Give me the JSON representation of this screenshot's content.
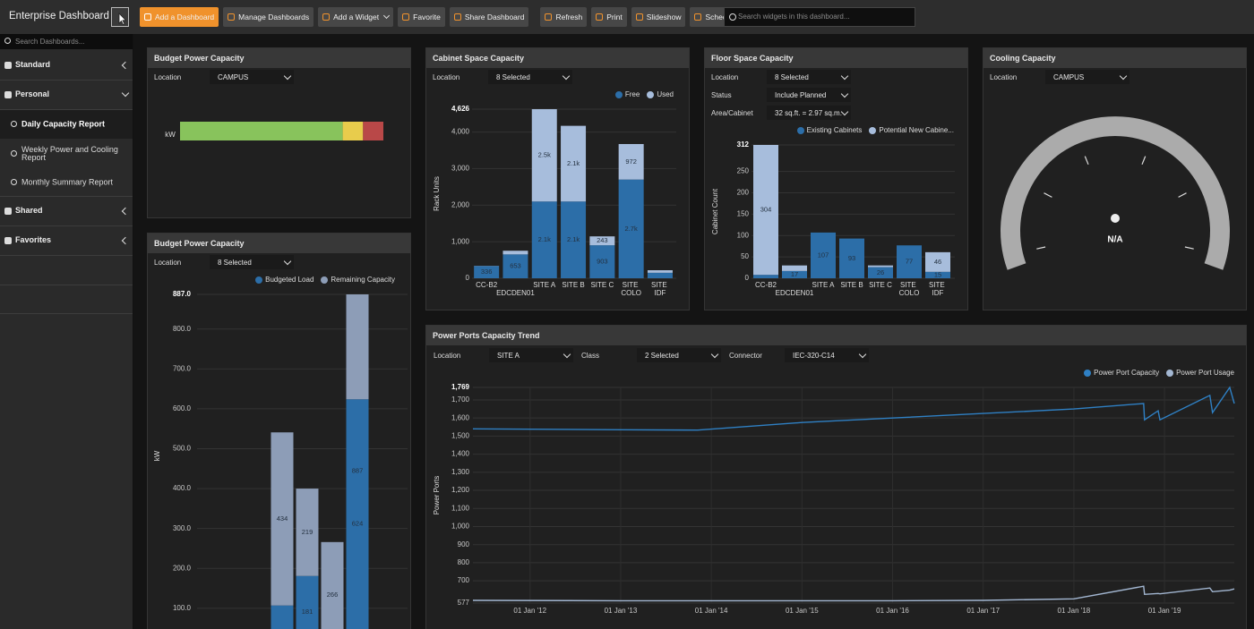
{
  "toolbar": {
    "title": "Enterprise Dashboard",
    "buttons": [
      "Add a Dashboard",
      "Manage Dashboards",
      "Add a Widget",
      "Favorite",
      "Share Dashboard",
      "Refresh",
      "Print",
      "Slideshow",
      "Schedule"
    ],
    "search_placeholder": "Search widgets in this dashboard..."
  },
  "sidebar": {
    "search_placeholder": "Search Dashboards...",
    "groups": [
      {
        "label": "Standard"
      },
      {
        "label": "Personal",
        "items": [
          "Daily Capacity Report",
          "Weekly Power and Cooling Report",
          "Monthly Summary Report"
        ]
      },
      {
        "label": "Shared"
      },
      {
        "label": "Favorites"
      }
    ]
  },
  "widgets": {
    "budget_top": {
      "title": "Budget Power Capacity",
      "filters": [
        {
          "label": "Location",
          "value": "CAMPUS"
        }
      ],
      "unit": "kW",
      "segments": [
        {
          "color": "#88c35c",
          "value": 80
        },
        {
          "color": "#e8cc4c",
          "value": 10
        },
        {
          "color": "#b94848",
          "value": 10
        }
      ]
    },
    "budget_chart": {
      "title": "Budget Power Capacity",
      "filters": [
        {
          "label": "Location",
          "value": "8 Selected"
        }
      ],
      "chart": {
        "type": "bar",
        "stacked": true,
        "grid": true,
        "y_label": "kW",
        "series": [
          {
            "name": "Budgeted Load",
            "color": "#2c6ea8",
            "values": [
              107,
              181,
              0,
              624
            ],
            "value_labels": [
              null,
              "181",
              null,
              "624"
            ]
          },
          {
            "name": "Remaining Capacity",
            "color": "#8d9db7",
            "values": [
              434,
              219,
              266,
              263
            ],
            "value_labels": [
              "434",
              "219",
              "266",
              null
            ]
          }
        ],
        "annotations": [
          {
            "text": "887",
            "value": 887
          }
        ],
        "ylim": [
          48,
          887
        ],
        "yticks": [
          {
            "value": 100,
            "label": "100.0"
          },
          {
            "value": 200,
            "label": "200.0"
          },
          {
            "value": 300,
            "label": "300.0"
          },
          {
            "value": 400,
            "label": "400.0"
          },
          {
            "value": 500,
            "label": "500.0"
          },
          {
            "value": 600,
            "label": "600.0"
          },
          {
            "value": 700,
            "label": "700.0"
          },
          {
            "value": 800,
            "label": "800.0"
          },
          {
            "value": 887,
            "label": "887.0"
          }
        ]
      }
    },
    "cabinet": {
      "title": "Cabinet Space Capacity",
      "filters": [
        {
          "label": "Location",
          "value": "8 Selected"
        }
      ],
      "chart": {
        "type": "bar",
        "stacked": true,
        "grid": true,
        "y_label": "Rack Units",
        "categories": [
          "CC-B2",
          "EDCDEN01",
          "SITE A",
          "SITE B",
          "SITE C",
          "SITE COLO",
          "SITE IDF"
        ],
        "series": [
          {
            "name": "Free",
            "color": "#2c6ea8",
            "values": [
              336,
              653,
              2100,
              2100,
              903,
              2700,
              150
            ],
            "value_labels": [
              "336",
              "653",
              "2.1k",
              "2.1k",
              "903",
              "2.7k",
              null
            ]
          },
          {
            "name": "Used",
            "color": "#a7bddc",
            "values": [
              5,
              100,
              2526,
              2070,
              243,
              972,
              70
            ],
            "value_labels": [
              null,
              null,
              "2.5k",
              "2.1k",
              "243",
              "972",
              null
            ]
          }
        ],
        "ylim": [
          0,
          4626
        ],
        "yticks": [
          0,
          {
            "value": 1000,
            "label": "1,000"
          },
          {
            "value": 2000,
            "label": "2,000"
          },
          {
            "value": 3000,
            "label": "3,000"
          },
          {
            "value": 4000,
            "label": "4,000"
          },
          {
            "value": 4626,
            "label": "4,626"
          }
        ]
      }
    },
    "floor": {
      "title": "Floor Space Capacity",
      "filters": [
        {
          "label": "Location",
          "value": "8 Selected"
        },
        {
          "label": "Status",
          "value": "Include Planned"
        },
        {
          "label": "Area/Cabinet",
          "value": "32 sq.ft. = 2.97 sq.m."
        }
      ],
      "chart": {
        "type": "bar",
        "stacked": true,
        "grid": true,
        "y_label": "Cabinet Count",
        "categories": [
          "CC-B2",
          "EDCDEN01",
          "SITE A",
          "SITE B",
          "SITE C",
          "SITE COLO",
          "SITE IDF"
        ],
        "series": [
          {
            "name": "Existing Cabinets",
            "color": "#2c6ea8",
            "values": [
              8,
              17,
              107,
              93,
              26,
              77,
              15
            ],
            "value_labels": [
              null,
              "17",
              "107",
              "93",
              "26",
              "77",
              "15"
            ]
          },
          {
            "name": "Potential New Cabine...",
            "color": "#a7bddc",
            "values": [
              304,
              13,
              0,
              0,
              4,
              0,
              46
            ],
            "value_labels": [
              "304",
              null,
              null,
              null,
              null,
              null,
              "46"
            ]
          }
        ],
        "ylim": [
          0,
          312
        ],
        "yticks": [
          0,
          50,
          100,
          150,
          200,
          250,
          312
        ]
      }
    },
    "cooling": {
      "title": "Cooling Capacity",
      "filters": [
        {
          "label": "Location",
          "value": "CAMPUS"
        }
      ],
      "value_text": "N/A"
    },
    "power": {
      "title": "Power Ports Capacity Trend",
      "filters": [
        {
          "label": "Location",
          "value": "SITE A"
        },
        {
          "label": "Class",
          "value": "2 Selected"
        },
        {
          "label": "Connector",
          "value": "IEC-320-C14"
        }
      ],
      "chart": {
        "type": "line",
        "grid": true,
        "y_label": "Power Ports",
        "x": [
          2011.37,
          2013.0,
          2013.85,
          2015.0,
          2016.0,
          2017.0,
          2018.0,
          2018.77,
          2018.78,
          2018.93,
          2018.95,
          2019.5,
          2019.53,
          2019.72,
          2019.77
        ],
        "series": [
          {
            "name": "Power Port Capacity",
            "color": "#2f80c4",
            "values": [
              1540,
              1535,
              1533,
              1575,
              1600,
              1625,
              1650,
              1680,
              1590,
              1640,
              1590,
              1725,
              1630,
              1769,
              1680
            ]
          },
          {
            "name": "Power Port Usage",
            "color": "#a3b7d2",
            "values": [
              592,
              590,
              590,
              590,
              590,
              592,
              600,
              670,
              625,
              630,
              628,
              660,
              640,
              648,
              655
            ]
          }
        ],
        "xlim": [
          2011.37,
          2019.77
        ],
        "xticks": [
          {
            "value": 2012,
            "label": "01 Jan '12"
          },
          {
            "value": 2013,
            "label": "01 Jan '13"
          },
          {
            "value": 2014,
            "label": "01 Jan '14"
          },
          {
            "value": 2015,
            "label": "01 Jan '15"
          },
          {
            "value": 2016,
            "label": "01 Jan '16"
          },
          {
            "value": 2017,
            "label": "01 Jan '17"
          },
          {
            "value": 2018,
            "label": "01 Jan '18"
          },
          {
            "value": 2019,
            "label": "01 Jan '19"
          }
        ],
        "ylim": [
          577,
          1769
        ],
        "yticks": [
          577,
          700,
          800,
          900,
          {
            "value": 1000,
            "label": "1,000"
          },
          {
            "value": 1100,
            "label": "1,100"
          },
          {
            "value": 1200,
            "label": "1,200"
          },
          {
            "value": 1300,
            "label": "1,300"
          },
          {
            "value": 1400,
            "label": "1,400"
          },
          {
            "value": 1500,
            "label": "1,500"
          },
          {
            "value": 1600,
            "label": "1,600"
          },
          {
            "value": 1700,
            "label": "1,700"
          },
          {
            "value": 1769,
            "label": "1,769"
          }
        ]
      }
    }
  }
}
